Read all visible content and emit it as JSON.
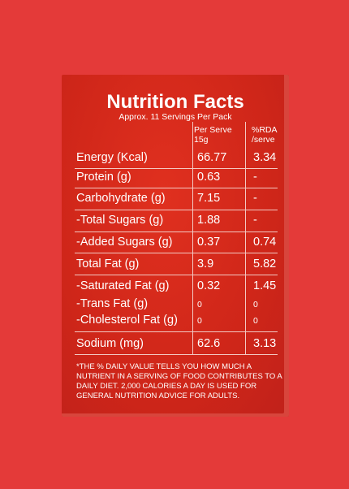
{
  "label": {
    "title": "Nutrition Facts",
    "subtitle": "Approx. 11 Servings Per Pack",
    "columns": [
      [
        "Per Serve",
        "15g"
      ],
      [
        "%RDA",
        "/serve"
      ]
    ],
    "rows": [
      [
        "Energy (Kcal)",
        66.77,
        3.34
      ],
      [
        "Protein (g)",
        0.63,
        "-"
      ],
      [
        "Carbohydrate (g)",
        7.15,
        "-"
      ],
      [
        "-Total Sugars (g)",
        1.88,
        "-"
      ],
      [
        "-Added Sugars (g)",
        0.37,
        0.74
      ],
      [
        "Total Fat (g)",
        3.9,
        5.82
      ],
      [
        "-Saturated Fat (g)",
        0.32,
        1.45
      ],
      [
        "-Trans Fat (g)",
        0,
        0
      ],
      [
        "-Cholesterol Fat (g)",
        0,
        0
      ],
      [
        "Sodium (mg)",
        62.6,
        3.13
      ]
    ],
    "footnote": [
      "*THE % DAILY VALUE TELLS YOU HOW MUCH A",
      "NUTRIENT  IN A SERVING OF FOOD CONTRIBUTES TO A",
      "DAILY DIET. 2,000 CALORIES A DAY IS USED FOR",
      "GENERAL NUTRITION ADVICE FOR ADULTS."
    ]
  }
}
